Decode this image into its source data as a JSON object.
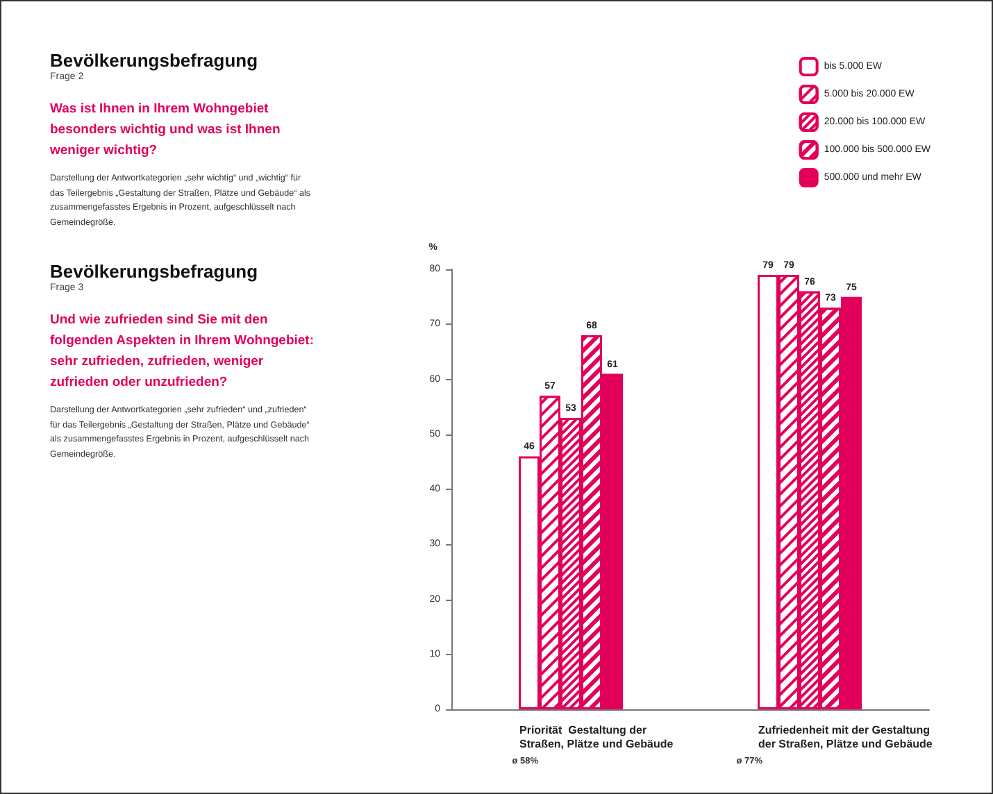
{
  "chart_data": {
    "type": "bar",
    "title": "Bevölkerungsbefragung",
    "subtitle": "Frage 2",
    "annotations": [
      "Was ist Ihnen in Ihrem Wohngebiet besonders wichtig und was ist Ihnen weniger wichtig?",
      "Darstellung der Antwortkategorien „sehr wichtig“ und „wichtig“ für das Teilergebnis „Gestaltung der Straßen, Plätze und Gebäude“ als zusammengefasstes Ergebnis in Prozent, aufgeschlüsselt nach Gemeindegröße.",
      "Bevölkerungsbefragung",
      "Frage 3",
      "Und wie zufrieden sind Sie mit den folgenden Aspekten in Ihrem Wohngebiet: sehr zufrieden, zufrieden, weniger zufrieden oder unzufrieden?",
      "Darstellung der Antwortkategorien „sehr zufrieden“ und „zufrieden“ für das Teilergebnis „Gestaltung der Straßen, Plätze und Gebäude“ als zusammengefasstes Ergebnis in Prozent, aufgeschlüsselt nach Gemeindegröße.",
      "ø 58%",
      "ø 77%"
    ],
    "ylabel": "%",
    "categories": [
      "Priorität  Gestaltung der Straßen, Plätze und Gebäude",
      "Zufriedenheit mit der Gestaltung der Straßen, Plätze und Gebäude"
    ],
    "series": [
      {
        "name": "bis 5.000 EW",
        "color": "#e2005a",
        "values": [
          46,
          79
        ]
      },
      {
        "name": "5.000 bis 20.000 EW",
        "color": "#e2005a",
        "values": [
          57,
          79
        ]
      },
      {
        "name": "20.000 bis 100.000 EW",
        "color": "#e2005a",
        "values": [
          53,
          76
        ]
      },
      {
        "name": "100.000 bis 500.000 EW",
        "color": "#e2005a",
        "values": [
          68,
          73
        ]
      },
      {
        "name": "500.000 und mehr EW",
        "color": "#e2005a",
        "values": [
          61,
          75
        ]
      }
    ],
    "ylim": [
      0,
      80
    ],
    "yticks": [
      0,
      10,
      20,
      30,
      40,
      50,
      60,
      70,
      80
    ],
    "data_labels": true,
    "legend": "top right",
    "grid": false
  }
}
